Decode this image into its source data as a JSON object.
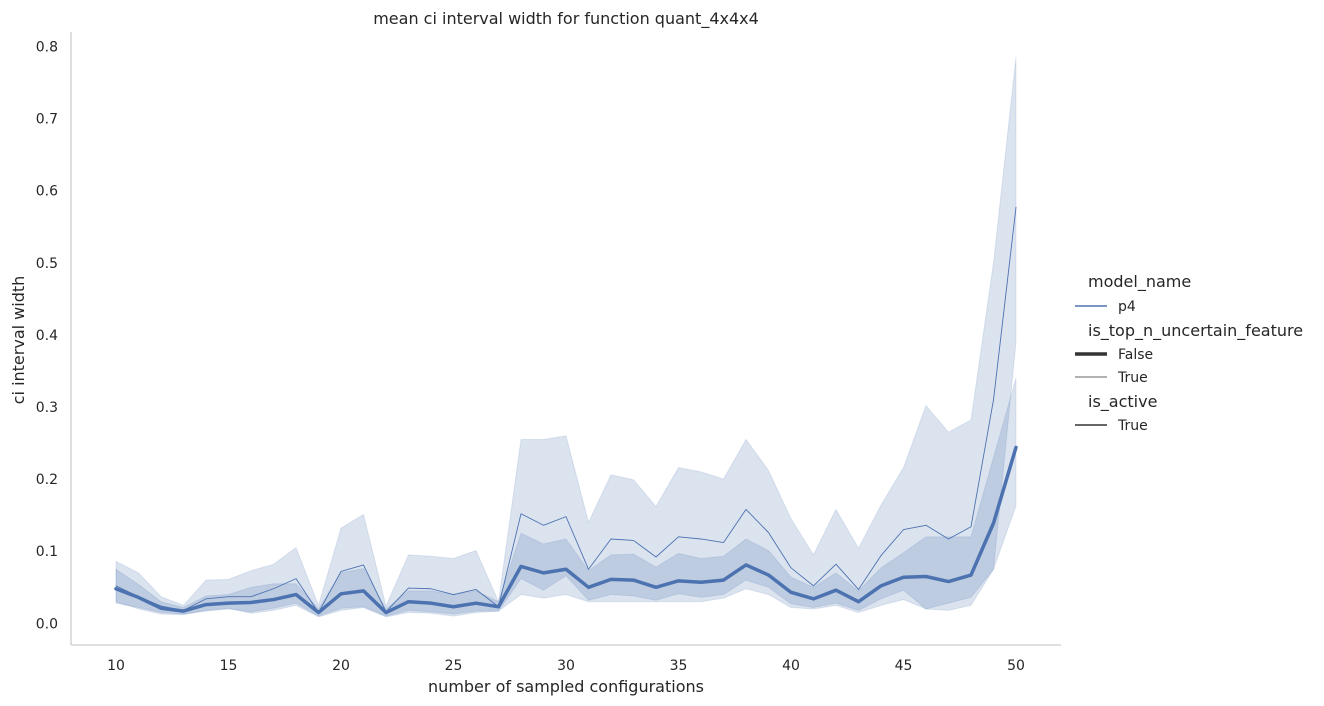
{
  "chart_data": {
    "type": "line",
    "title": "mean ci interval width for function quant_4x4x4",
    "xlabel": "number of sampled configurations",
    "ylabel": "ci interval width",
    "xlim": [
      8,
      52
    ],
    "ylim": [
      -0.03,
      0.82
    ],
    "x_ticks": [
      "10",
      "15",
      "20",
      "25",
      "30",
      "35",
      "40",
      "45",
      "50"
    ],
    "y_ticks": [
      "0.0",
      "0.1",
      "0.2",
      "0.3",
      "0.4",
      "0.5",
      "0.6",
      "0.7",
      "0.8"
    ],
    "grid": false,
    "color": "#4c72b0",
    "x": [
      10,
      11,
      12,
      13,
      14,
      15,
      16,
      17,
      18,
      19,
      20,
      21,
      22,
      23,
      24,
      25,
      26,
      27,
      28,
      29,
      30,
      31,
      32,
      33,
      34,
      35,
      36,
      37,
      38,
      39,
      40,
      41,
      42,
      43,
      44,
      45,
      46,
      47,
      48,
      49,
      50
    ],
    "series": [
      {
        "is_top_n_uncertain_feature": "False",
        "values": [
          0.048,
          0.036,
          0.021,
          0.017,
          0.026,
          0.028,
          0.029,
          0.033,
          0.04,
          0.015,
          0.041,
          0.045,
          0.015,
          0.03,
          0.028,
          0.023,
          0.028,
          0.023,
          0.079,
          0.07,
          0.075,
          0.05,
          0.061,
          0.06,
          0.05,
          0.059,
          0.057,
          0.06,
          0.081,
          0.067,
          0.043,
          0.034,
          0.046,
          0.03,
          0.052,
          0.064,
          0.065,
          0.058,
          0.067,
          0.139,
          0.244
        ],
        "ci_low": [
          0.028,
          0.022,
          0.015,
          0.013,
          0.017,
          0.02,
          0.016,
          0.021,
          0.028,
          0.01,
          0.021,
          0.023,
          0.01,
          0.018,
          0.016,
          0.013,
          0.017,
          0.017,
          0.062,
          0.046,
          0.066,
          0.032,
          0.04,
          0.038,
          0.032,
          0.041,
          0.036,
          0.04,
          0.06,
          0.05,
          0.027,
          0.022,
          0.028,
          0.018,
          0.034,
          0.046,
          0.02,
          0.028,
          0.036,
          0.075,
          0.163
        ],
        "ci_high": [
          0.075,
          0.054,
          0.03,
          0.022,
          0.038,
          0.04,
          0.05,
          0.055,
          0.055,
          0.02,
          0.07,
          0.076,
          0.02,
          0.045,
          0.045,
          0.04,
          0.045,
          0.03,
          0.125,
          0.11,
          0.117,
          0.073,
          0.095,
          0.096,
          0.078,
          0.097,
          0.09,
          0.093,
          0.117,
          0.101,
          0.064,
          0.05,
          0.07,
          0.045,
          0.077,
          0.098,
          0.12,
          0.12,
          0.12,
          0.23,
          0.34
        ]
      },
      {
        "is_top_n_uncertain_feature": "True",
        "values": [
          0.052,
          0.037,
          0.024,
          0.018,
          0.034,
          0.037,
          0.037,
          0.048,
          0.062,
          0.015,
          0.072,
          0.081,
          0.016,
          0.049,
          0.048,
          0.04,
          0.047,
          0.023,
          0.152,
          0.136,
          0.148,
          0.075,
          0.117,
          0.115,
          0.092,
          0.12,
          0.117,
          0.112,
          0.158,
          0.126,
          0.077,
          0.052,
          0.082,
          0.047,
          0.094,
          0.13,
          0.136,
          0.117,
          0.134,
          0.31,
          0.577
        ],
        "ci_low": [
          0.03,
          0.02,
          0.013,
          0.012,
          0.018,
          0.021,
          0.014,
          0.018,
          0.025,
          0.009,
          0.018,
          0.022,
          0.009,
          0.015,
          0.014,
          0.01,
          0.015,
          0.017,
          0.04,
          0.035,
          0.04,
          0.03,
          0.03,
          0.03,
          0.03,
          0.03,
          0.03,
          0.035,
          0.048,
          0.04,
          0.022,
          0.02,
          0.025,
          0.015,
          0.025,
          0.033,
          0.02,
          0.018,
          0.025,
          0.075,
          0.39
        ],
        "ci_high": [
          0.086,
          0.07,
          0.037,
          0.025,
          0.06,
          0.061,
          0.073,
          0.082,
          0.105,
          0.025,
          0.132,
          0.151,
          0.024,
          0.095,
          0.093,
          0.09,
          0.101,
          0.03,
          0.255,
          0.255,
          0.26,
          0.14,
          0.206,
          0.199,
          0.162,
          0.216,
          0.21,
          0.2,
          0.255,
          0.212,
          0.145,
          0.095,
          0.158,
          0.104,
          0.164,
          0.216,
          0.302,
          0.265,
          0.282,
          0.5,
          0.785
        ]
      }
    ],
    "legend": {
      "placement": "right",
      "groups": [
        {
          "title": "model_name",
          "entries": [
            "p4"
          ]
        },
        {
          "title": "is_top_n_uncertain_feature",
          "entries": [
            "False",
            "True"
          ]
        },
        {
          "title": "is_active",
          "entries": [
            "True"
          ]
        }
      ]
    }
  }
}
